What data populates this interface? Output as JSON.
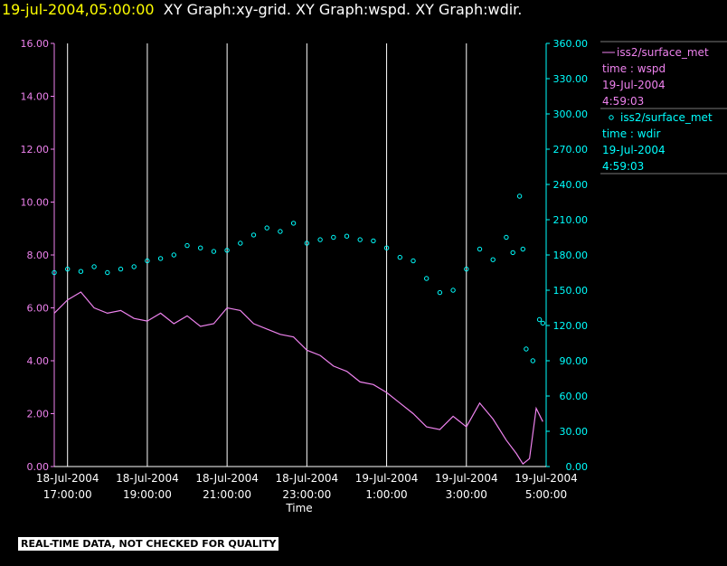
{
  "header": {
    "timestamp": "19-jul-2004,05:00:00",
    "graphs": "XY Graph:xy-grid.  XY Graph:wspd.  XY Graph:wdir."
  },
  "footer": {
    "disclaimer": "REAL-TIME DATA, NOT CHECKED FOR QUALITY"
  },
  "colors": {
    "wspd": "#ee82ee",
    "wdir": "#00ffff",
    "grid": "#ffffff",
    "background": "#000000",
    "title_time": "#ffff00"
  },
  "chart_data": {
    "type": "line",
    "xlabel": "Time",
    "x_ticks": [
      {
        "date": "18-Jul-2004",
        "time": "17:00:00"
      },
      {
        "date": "18-Jul-2004",
        "time": "19:00:00"
      },
      {
        "date": "18-Jul-2004",
        "time": "21:00:00"
      },
      {
        "date": "18-Jul-2004",
        "time": "23:00:00"
      },
      {
        "date": "19-Jul-2004",
        "time": "1:00:00"
      },
      {
        "date": "19-Jul-2004",
        "time": "3:00:00"
      },
      {
        "date": "19-Jul-2004",
        "time": "5:00:00"
      }
    ],
    "xlim": [
      "2004-07-18 16:40",
      "2004-07-19 05:00"
    ],
    "y_left": {
      "lim": [
        0,
        16
      ],
      "ticks": [
        "0.00",
        "2.00",
        "4.00",
        "6.00",
        "8.00",
        "10.00",
        "12.00",
        "14.00",
        "16.00"
      ]
    },
    "y_right": {
      "lim": [
        0,
        360
      ],
      "ticks": [
        "0.00",
        "30.00",
        "60.00",
        "90.00",
        "120.00",
        "150.00",
        "180.00",
        "210.00",
        "240.00",
        "270.00",
        "300.00",
        "330.00",
        "360.00"
      ]
    },
    "grid": "vertical",
    "series": [
      {
        "name": "iss2/surface_met",
        "variable": "time : wspd",
        "last_date": "19-Jul-2004",
        "last_time": "4:59:03",
        "style": "line",
        "axis": "left",
        "points": [
          [
            "2004-07-18 16:40",
            5.8
          ],
          [
            "2004-07-18 17:00",
            6.3
          ],
          [
            "2004-07-18 17:20",
            6.6
          ],
          [
            "2004-07-18 17:40",
            6.0
          ],
          [
            "2004-07-18 18:00",
            5.8
          ],
          [
            "2004-07-18 18:20",
            5.9
          ],
          [
            "2004-07-18 18:40",
            5.6
          ],
          [
            "2004-07-18 19:00",
            5.5
          ],
          [
            "2004-07-18 19:20",
            5.8
          ],
          [
            "2004-07-18 19:40",
            5.4
          ],
          [
            "2004-07-18 20:00",
            5.7
          ],
          [
            "2004-07-18 20:20",
            5.3
          ],
          [
            "2004-07-18 20:40",
            5.4
          ],
          [
            "2004-07-18 21:00",
            6.0
          ],
          [
            "2004-07-18 21:20",
            5.9
          ],
          [
            "2004-07-18 21:40",
            5.4
          ],
          [
            "2004-07-18 22:00",
            5.2
          ],
          [
            "2004-07-18 22:20",
            5.0
          ],
          [
            "2004-07-18 22:40",
            4.9
          ],
          [
            "2004-07-18 23:00",
            4.4
          ],
          [
            "2004-07-18 23:20",
            4.2
          ],
          [
            "2004-07-18 23:40",
            3.8
          ],
          [
            "2004-07-19 00:00",
            3.6
          ],
          [
            "2004-07-19 00:20",
            3.2
          ],
          [
            "2004-07-19 00:40",
            3.1
          ],
          [
            "2004-07-19 01:00",
            2.8
          ],
          [
            "2004-07-19 01:20",
            2.4
          ],
          [
            "2004-07-19 01:40",
            2.0
          ],
          [
            "2004-07-19 02:00",
            1.5
          ],
          [
            "2004-07-19 02:20",
            1.4
          ],
          [
            "2004-07-19 02:40",
            1.9
          ],
          [
            "2004-07-19 03:00",
            1.5
          ],
          [
            "2004-07-19 03:20",
            2.4
          ],
          [
            "2004-07-19 03:40",
            1.8
          ],
          [
            "2004-07-19 04:00",
            1.0
          ],
          [
            "2004-07-19 04:15",
            0.5
          ],
          [
            "2004-07-19 04:25",
            0.1
          ],
          [
            "2004-07-19 04:35",
            0.3
          ],
          [
            "2004-07-19 04:45",
            2.2
          ],
          [
            "2004-07-19 04:55",
            1.7
          ]
        ]
      },
      {
        "name": "iss2/surface_met",
        "variable": "time : wdir",
        "last_date": "19-Jul-2004",
        "last_time": "4:59:03",
        "style": "circles",
        "axis": "right",
        "points": [
          [
            "2004-07-18 16:40",
            165
          ],
          [
            "2004-07-18 17:00",
            168
          ],
          [
            "2004-07-18 17:20",
            166
          ],
          [
            "2004-07-18 17:40",
            170
          ],
          [
            "2004-07-18 18:00",
            165
          ],
          [
            "2004-07-18 18:20",
            168
          ],
          [
            "2004-07-18 18:40",
            170
          ],
          [
            "2004-07-18 19:00",
            175
          ],
          [
            "2004-07-18 19:20",
            177
          ],
          [
            "2004-07-18 19:40",
            180
          ],
          [
            "2004-07-18 20:00",
            188
          ],
          [
            "2004-07-18 20:20",
            186
          ],
          [
            "2004-07-18 20:40",
            183
          ],
          [
            "2004-07-18 21:00",
            184
          ],
          [
            "2004-07-18 21:20",
            190
          ],
          [
            "2004-07-18 21:40",
            197
          ],
          [
            "2004-07-18 22:00",
            203
          ],
          [
            "2004-07-18 22:20",
            200
          ],
          [
            "2004-07-18 22:40",
            207
          ],
          [
            "2004-07-18 23:00",
            190
          ],
          [
            "2004-07-18 23:20",
            193
          ],
          [
            "2004-07-18 23:40",
            195
          ],
          [
            "2004-07-19 00:00",
            196
          ],
          [
            "2004-07-19 00:20",
            193
          ],
          [
            "2004-07-19 00:40",
            192
          ],
          [
            "2004-07-19 01:00",
            186
          ],
          [
            "2004-07-19 01:20",
            178
          ],
          [
            "2004-07-19 01:40",
            175
          ],
          [
            "2004-07-19 02:00",
            160
          ],
          [
            "2004-07-19 02:20",
            148
          ],
          [
            "2004-07-19 02:40",
            150
          ],
          [
            "2004-07-19 03:00",
            168
          ],
          [
            "2004-07-19 03:20",
            185
          ],
          [
            "2004-07-19 03:40",
            176
          ],
          [
            "2004-07-19 04:00",
            195
          ],
          [
            "2004-07-19 04:10",
            182
          ],
          [
            "2004-07-19 04:20",
            230
          ],
          [
            "2004-07-19 04:25",
            185
          ],
          [
            "2004-07-19 04:30",
            100
          ],
          [
            "2004-07-19 04:40",
            90
          ],
          [
            "2004-07-19 04:50",
            125
          ],
          [
            "2004-07-19 04:55",
            122
          ]
        ]
      }
    ]
  }
}
